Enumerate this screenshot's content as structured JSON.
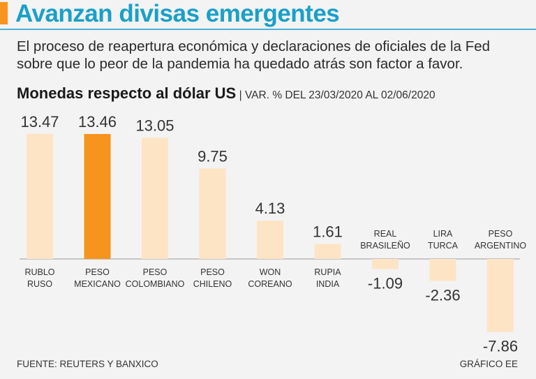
{
  "header": {
    "title": "Avanzan divisas emergentes",
    "subtitle": "El proceso de reapertura económica y declaraciones de oficiales de la Fed sobre que lo peor de la pandemia ha quedado atrás son factor a favor."
  },
  "chart_heading": {
    "title": "Monedas respecto al dólar US",
    "subtitle": "| VAR. % DEL 23/03/2020 AL 02/06/2020"
  },
  "chart_data": {
    "type": "bar",
    "title": "Monedas respecto al dólar US",
    "subtitle": "VAR. % DEL 23/03/2020 AL 02/06/2020",
    "categories": [
      [
        "RUBLO",
        "RUSO"
      ],
      [
        "PESO",
        "MEXICANO"
      ],
      [
        "PESO",
        "COLOMBIANO"
      ],
      [
        "PESO",
        "CHILENO"
      ],
      [
        "WON",
        "COREANO"
      ],
      [
        "RUPIA",
        "INDIA"
      ],
      [
        "REAL",
        "BRASILEÑO"
      ],
      [
        "LIRA",
        "TURCA"
      ],
      [
        "PESO",
        "ARGENTINO"
      ]
    ],
    "values": [
      13.47,
      13.46,
      13.05,
      9.75,
      4.13,
      1.61,
      -1.09,
      -2.36,
      -7.86
    ],
    "value_labels": [
      "13.47",
      "13.46",
      "13.05",
      "9.75",
      "4.13",
      "1.61",
      "-1.09",
      "-2.36",
      "-7.86"
    ],
    "highlight_index": 1,
    "ylim": [
      -7.86,
      13.47
    ],
    "xlabel": "",
    "ylabel": "",
    "colors": {
      "bar": "#fde4c4",
      "highlight": "#f7941d",
      "axis": "#999999"
    }
  },
  "footer": {
    "source": "FUENTE: REUTERS Y BANXICO",
    "credit": "GRÁFICO EE"
  },
  "colors": {
    "accent": "#f7941d",
    "title": "#1aa0c8",
    "background": "#f3f3f3"
  }
}
